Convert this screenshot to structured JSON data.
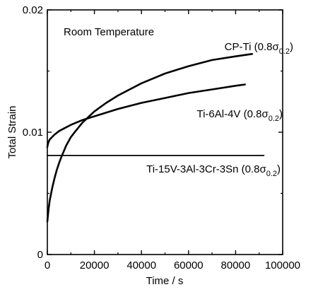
{
  "chart_data": {
    "type": "line",
    "title": "",
    "annotation": "Room Temperature",
    "xlabel": "Time / s",
    "ylabel": "Total Strain",
    "xlim": [
      0,
      100000
    ],
    "ylim": [
      0,
      0.02
    ],
    "x_ticks": [
      0,
      20000,
      40000,
      60000,
      80000,
      100000
    ],
    "x_tick_labels": [
      "0",
      "20000",
      "40000",
      "60000",
      "80000",
      "100000"
    ],
    "y_ticks": [
      0,
      0.01,
      0.02
    ],
    "y_tick_labels": [
      "0",
      "0.01",
      "0.02"
    ],
    "grid": false,
    "series": [
      {
        "name": "CP-Ti (0.8σ0.2)",
        "label_main": "CP-Ti (0.8σ",
        "label_sub": "0.2",
        "label_close": ")",
        "x": [
          0,
          500,
          1000,
          2000,
          3000,
          4000,
          5000,
          6000,
          8000,
          10000,
          12000,
          15000,
          20000,
          25000,
          30000,
          40000,
          50000,
          60000,
          70000,
          80000,
          87000
        ],
        "y": [
          0.0027,
          0.0037,
          0.0044,
          0.0054,
          0.0062,
          0.0069,
          0.0075,
          0.008,
          0.0089,
          0.0096,
          0.0101,
          0.0108,
          0.0117,
          0.0124,
          0.013,
          0.014,
          0.0148,
          0.0154,
          0.0159,
          0.0162,
          0.0164
        ]
      },
      {
        "name": "Ti-6Al-4V (0.8σ0.2)",
        "label_main": "Ti-6Al-4V (0.8σ",
        "label_sub": "0.2",
        "label_close": ")",
        "x": [
          0,
          200,
          500,
          1000,
          2000,
          3000,
          5000,
          7000,
          10000,
          15000,
          20000,
          30000,
          40000,
          50000,
          60000,
          70000,
          80000,
          84000
        ],
        "y": [
          0.0088,
          0.009,
          0.0092,
          0.0094,
          0.0096,
          0.0098,
          0.0101,
          0.0103,
          0.0106,
          0.011,
          0.0113,
          0.0119,
          0.0124,
          0.0128,
          0.0132,
          0.0135,
          0.0138,
          0.0139
        ]
      },
      {
        "name": "Ti-15V-3Al-3Cr-3Sn (0.8σ0.2)",
        "label_main": "Ti-15V-3Al-3Cr-3Sn (0.8σ",
        "label_sub": "0.2",
        "label_close": ")",
        "x": [
          0,
          92000
        ],
        "y": [
          0.0081,
          0.0081
        ]
      }
    ]
  },
  "colors": {
    "line": "#000000",
    "background": "#ffffff"
  }
}
